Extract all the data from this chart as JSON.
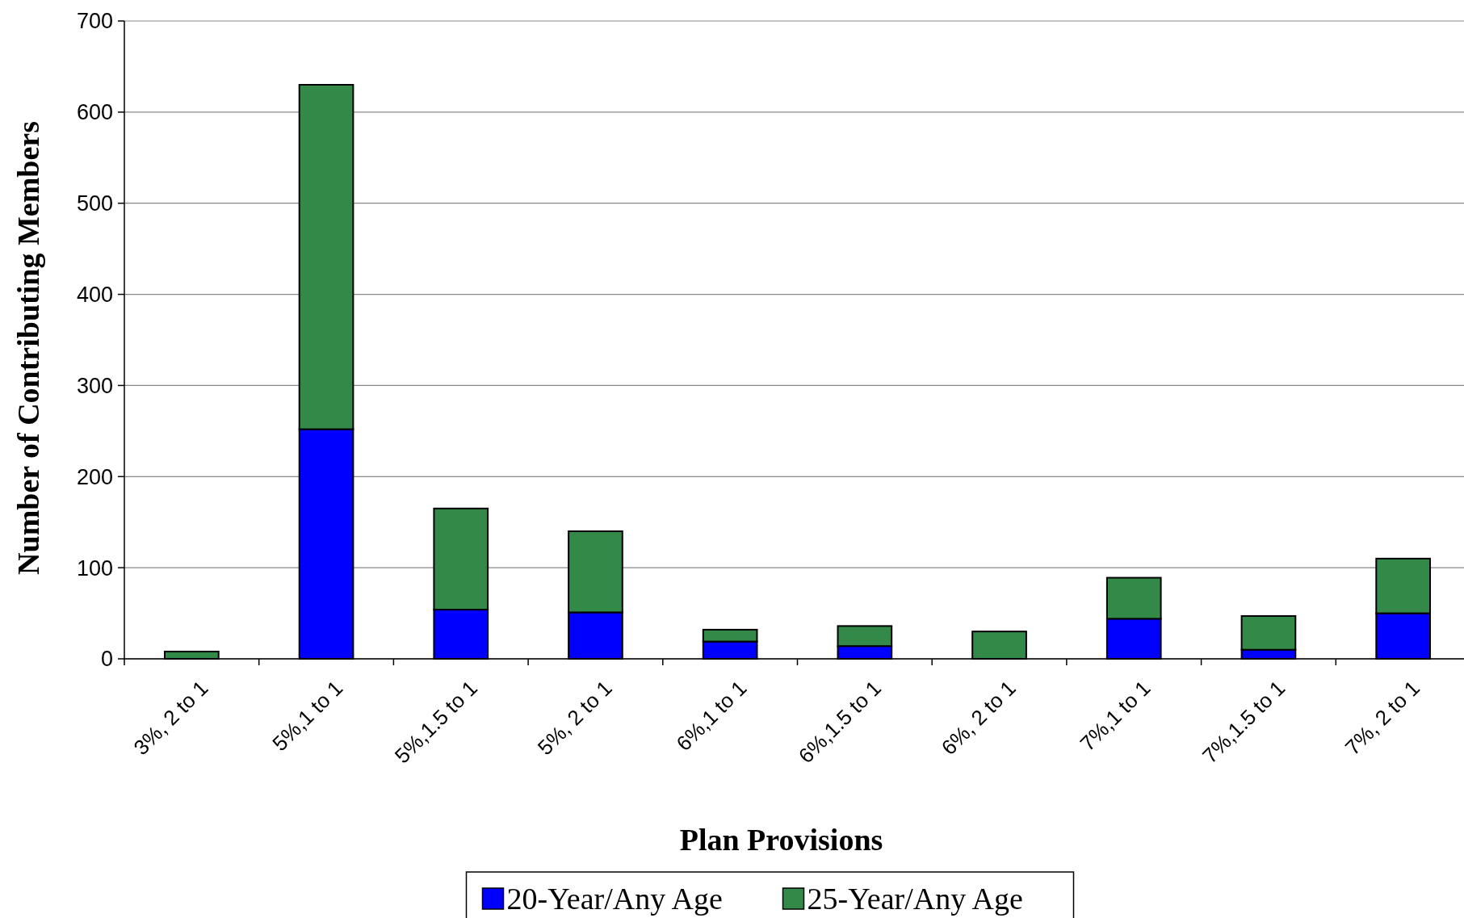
{
  "chart_data": {
    "type": "bar",
    "stacked": true,
    "xlabel": "Plan Provisions",
    "ylabel": "Number of Contributing Members",
    "categories": [
      "3%, 2 to 1",
      "5%,1 to 1",
      "5%,1.5 to 1",
      "5%, 2 to 1",
      "6%,1 to 1",
      "6%,1.5 to 1",
      "6%, 2 to 1",
      "7%,1 to 1",
      "7%,1.5 to 1",
      "7%, 2 to 1"
    ],
    "series": [
      {
        "name": "20-Year/Any Age",
        "color": "#0000ff",
        "values": [
          0,
          252,
          54,
          51,
          19,
          14,
          0,
          44,
          10,
          50
        ]
      },
      {
        "name": "25-Year/Any Age",
        "color": "#338a48",
        "values": [
          8,
          378,
          111,
          89,
          13,
          22,
          30,
          45,
          37,
          60
        ]
      }
    ],
    "ylim": [
      0,
      700
    ],
    "yticks": [
      0,
      100,
      200,
      300,
      400,
      500,
      600,
      700
    ],
    "grid": "y",
    "legend": "bottom"
  }
}
